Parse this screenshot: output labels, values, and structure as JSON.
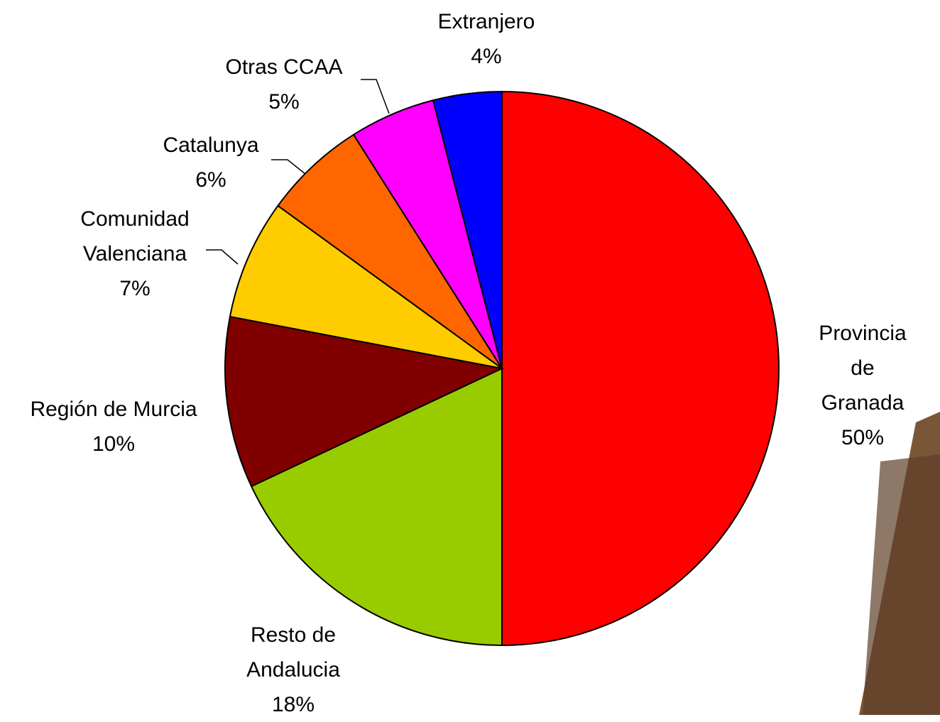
{
  "chart_data": {
    "type": "pie",
    "categories": [
      "Provincia de\nGranada",
      "Resto de\nAndalucia",
      "Región de Murcia",
      "Comunidad\nValenciana",
      "Catalunya",
      "Otras CCAA",
      "Extranjero"
    ],
    "values": [
      50,
      18,
      10,
      7,
      6,
      5,
      4
    ],
    "value_labels": [
      "50%",
      "18%",
      "10%",
      "7%",
      "6%",
      "5%",
      "4%"
    ],
    "colors": [
      "#ff0000",
      "#99cc00",
      "#800000",
      "#ffcc00",
      "#ff6600",
      "#ff00ff",
      "#0000ff"
    ]
  }
}
